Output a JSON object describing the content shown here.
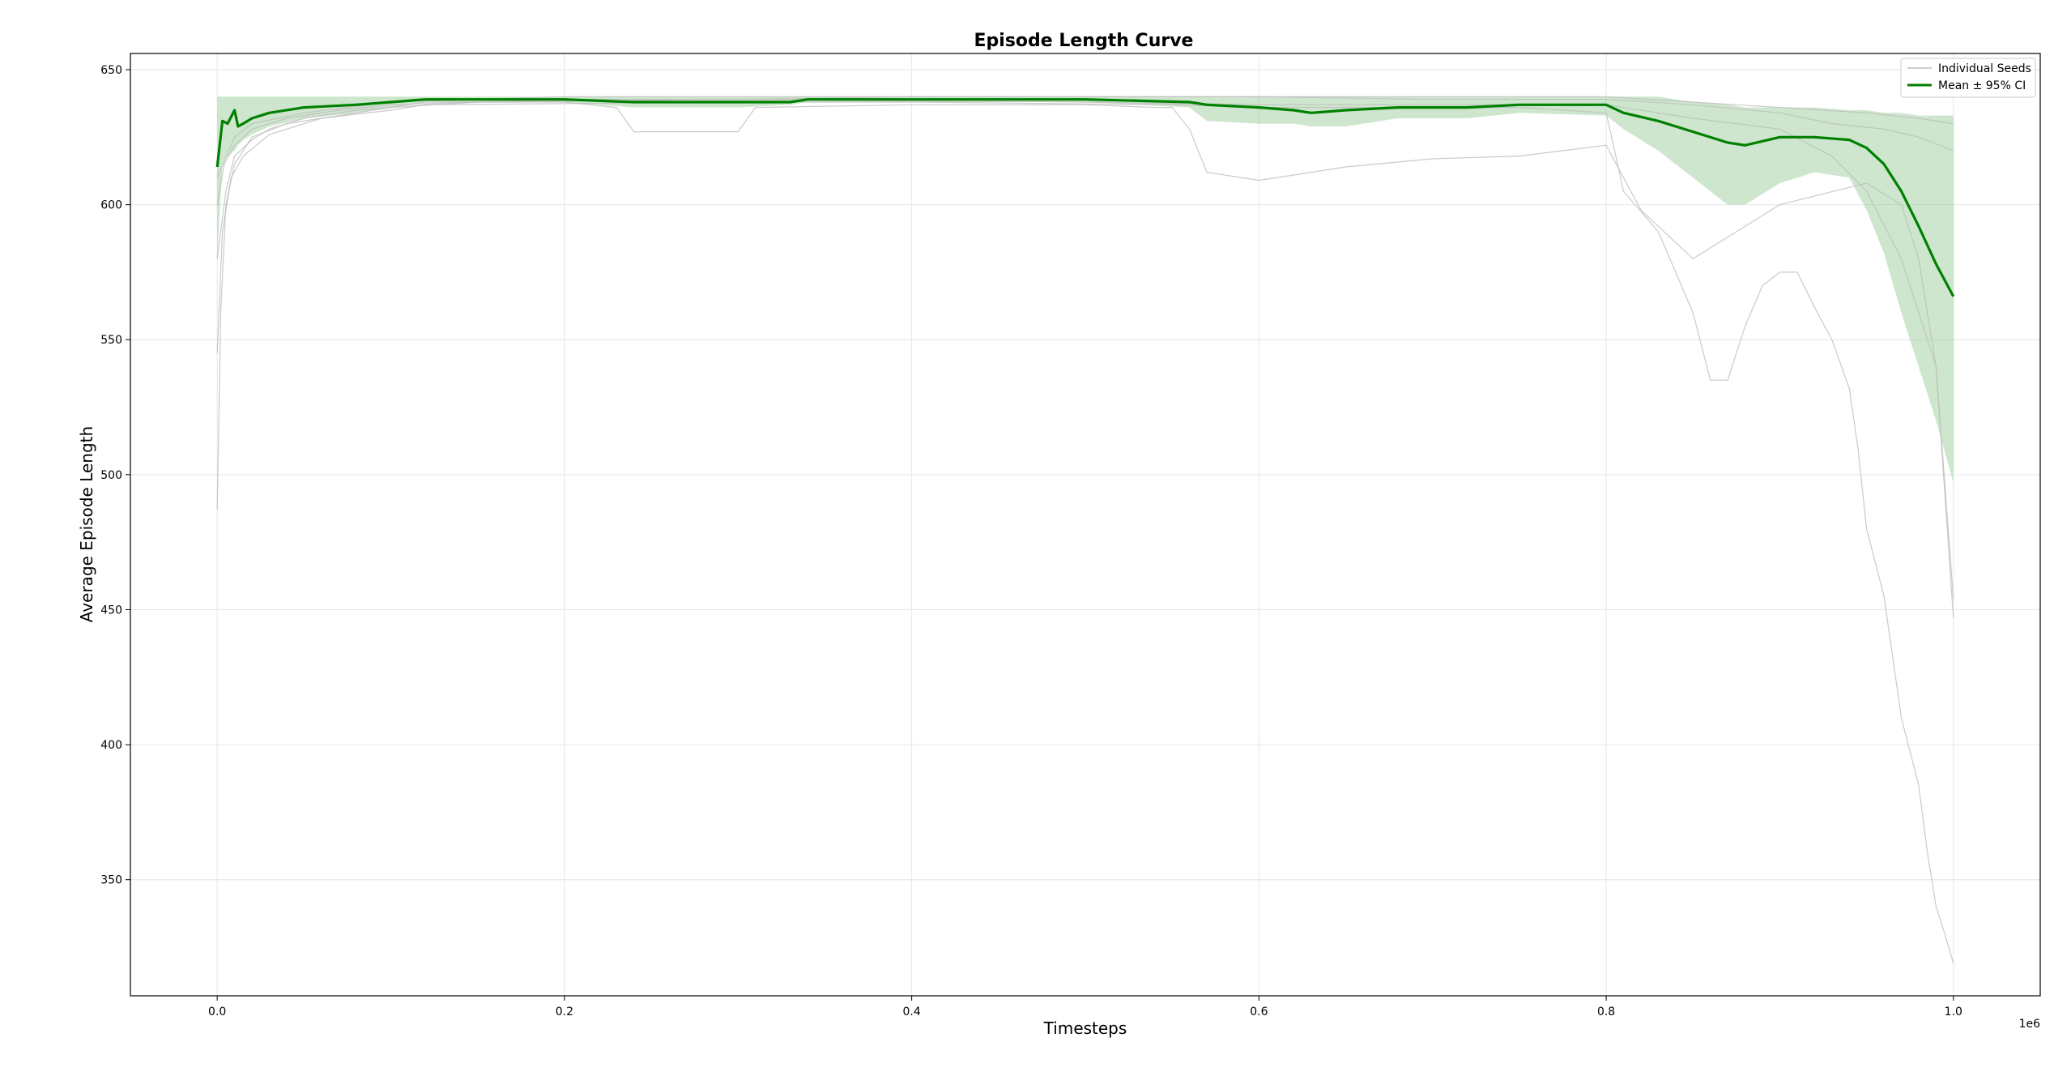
{
  "chart_data": {
    "type": "line",
    "title": "Episode Length Curve",
    "xlabel": "Timesteps",
    "ylabel": "Average Episode Length",
    "x_scale_label": "1e6",
    "xlim": [
      -0.05,
      1.05
    ],
    "ylim": [
      307,
      656
    ],
    "x_ticks": [
      0.0,
      0.2,
      0.4,
      0.6,
      0.8,
      1.0
    ],
    "x_tick_labels": [
      "0.0",
      "0.2",
      "0.4",
      "0.6",
      "0.8",
      "1.0"
    ],
    "y_ticks": [
      350,
      400,
      450,
      500,
      550,
      600,
      650
    ],
    "y_tick_labels": [
      "350",
      "400",
      "450",
      "500",
      "550",
      "600",
      "650"
    ],
    "grid": true,
    "legend_position": "top-right",
    "legend": [
      "Individual Seeds",
      "Mean ± 95% CI"
    ],
    "colors": {
      "seeds": "#bdbdbd",
      "mean": "#008000",
      "ci": "#90c890"
    },
    "seeds": [
      {
        "x": [
          0.0,
          0.002,
          0.005,
          0.01,
          0.02,
          0.04,
          0.07,
          0.1,
          0.12,
          0.2,
          0.23,
          0.24,
          0.3,
          0.31,
          0.4,
          0.5,
          0.54,
          0.55,
          0.56,
          0.57,
          0.6,
          0.65,
          0.7,
          0.75,
          0.8,
          0.82,
          0.85,
          0.9,
          0.95,
          0.97,
          0.98,
          0.99,
          1.0
        ],
        "y": [
          487,
          560,
          600,
          615,
          625,
          630,
          633,
          636,
          638,
          638,
          636,
          627,
          627,
          636,
          637,
          637,
          636,
          636,
          628,
          612,
          609,
          614,
          617,
          618,
          622,
          598,
          580,
          600,
          608,
          600,
          580,
          540,
          454
        ]
      },
      {
        "x": [
          0.0,
          0.003,
          0.008,
          0.015,
          0.03,
          0.06,
          0.1,
          0.12,
          0.3,
          0.4,
          0.55,
          0.6,
          0.7,
          0.75,
          0.8,
          0.81,
          0.83,
          0.85,
          0.86,
          0.87,
          0.88,
          0.89,
          0.9,
          0.91,
          0.92,
          0.93,
          0.94,
          0.945,
          0.95,
          0.96,
          0.97,
          0.98,
          0.985,
          0.99,
          0.995,
          1.0
        ],
        "y": [
          545,
          590,
          610,
          618,
          626,
          632,
          635,
          637,
          638,
          638,
          637,
          636,
          636,
          636,
          634,
          605,
          590,
          560,
          535,
          535,
          555,
          570,
          575,
          575,
          562,
          550,
          532,
          510,
          480,
          455,
          410,
          385,
          360,
          340,
          330,
          319
        ]
      },
      {
        "x": [
          0.0,
          0.005,
          0.01,
          0.02,
          0.03,
          0.05,
          0.08,
          0.1,
          0.15,
          0.3,
          0.5,
          0.6,
          0.7,
          0.8,
          0.85,
          0.9,
          0.93,
          0.95,
          0.97,
          0.98,
          0.99,
          1.0
        ],
        "y": [
          580,
          605,
          618,
          624,
          628,
          632,
          635,
          636,
          638,
          639,
          638,
          637,
          637,
          637,
          632,
          628,
          618,
          605,
          580,
          560,
          540,
          447
        ]
      },
      {
        "x": [
          0.0,
          0.004,
          0.01,
          0.02,
          0.04,
          0.07,
          0.1,
          0.2,
          0.3,
          0.4,
          0.5,
          0.6,
          0.7,
          0.8,
          0.85,
          0.9,
          0.93,
          0.96,
          0.98,
          1.0
        ],
        "y": [
          600,
          615,
          622,
          628,
          632,
          635,
          637,
          639,
          639,
          640,
          640,
          640,
          639,
          639,
          637,
          634,
          630,
          628,
          625,
          620
        ]
      },
      {
        "x": [
          0.0,
          0.01,
          0.02,
          0.05,
          0.1,
          0.2,
          0.4,
          0.6,
          0.8,
          0.85,
          0.9,
          0.95,
          0.98,
          1.0
        ],
        "y": [
          610,
          625,
          630,
          634,
          638,
          640,
          640,
          640,
          640,
          638,
          636,
          634,
          632,
          630
        ]
      }
    ],
    "mean": {
      "x": [
        0.0,
        0.003,
        0.006,
        0.01,
        0.012,
        0.015,
        0.02,
        0.03,
        0.05,
        0.08,
        0.1,
        0.12,
        0.2,
        0.24,
        0.3,
        0.33,
        0.34,
        0.4,
        0.5,
        0.56,
        0.57,
        0.6,
        0.62,
        0.63,
        0.65,
        0.68,
        0.7,
        0.72,
        0.75,
        0.8,
        0.81,
        0.83,
        0.85,
        0.87,
        0.88,
        0.9,
        0.92,
        0.94,
        0.95,
        0.96,
        0.97,
        0.98,
        0.99,
        1.0
      ],
      "y": [
        614,
        631,
        630,
        635,
        629,
        630,
        632,
        634,
        636,
        637,
        638,
        639,
        639,
        638,
        638,
        638,
        639,
        639,
        639,
        638,
        637,
        636,
        635,
        634,
        635,
        636,
        636,
        636,
        637,
        637,
        634,
        631,
        627,
        623,
        622,
        625,
        625,
        624,
        621,
        615,
        605,
        592,
        578,
        566
      ]
    },
    "ci_lower": [
      580,
      615,
      618,
      620,
      622,
      624,
      626,
      629,
      632,
      634,
      636,
      638,
      638,
      636,
      636,
      637,
      638,
      638,
      638,
      636,
      631,
      630,
      630,
      629,
      629,
      632,
      632,
      632,
      634,
      633,
      628,
      620,
      610,
      600,
      600,
      608,
      612,
      610,
      598,
      582,
      560,
      540,
      520,
      497
    ],
    "ci_upper": [
      640,
      640,
      640,
      640,
      640,
      640,
      640,
      640,
      640,
      640,
      640,
      640,
      640,
      640,
      640,
      640,
      640,
      640,
      640,
      640,
      640,
      640,
      640,
      640,
      640,
      640,
      640,
      640,
      640,
      640,
      640,
      640,
      638,
      637,
      636,
      636,
      636,
      635,
      635,
      634,
      634,
      633,
      633,
      633
    ]
  }
}
